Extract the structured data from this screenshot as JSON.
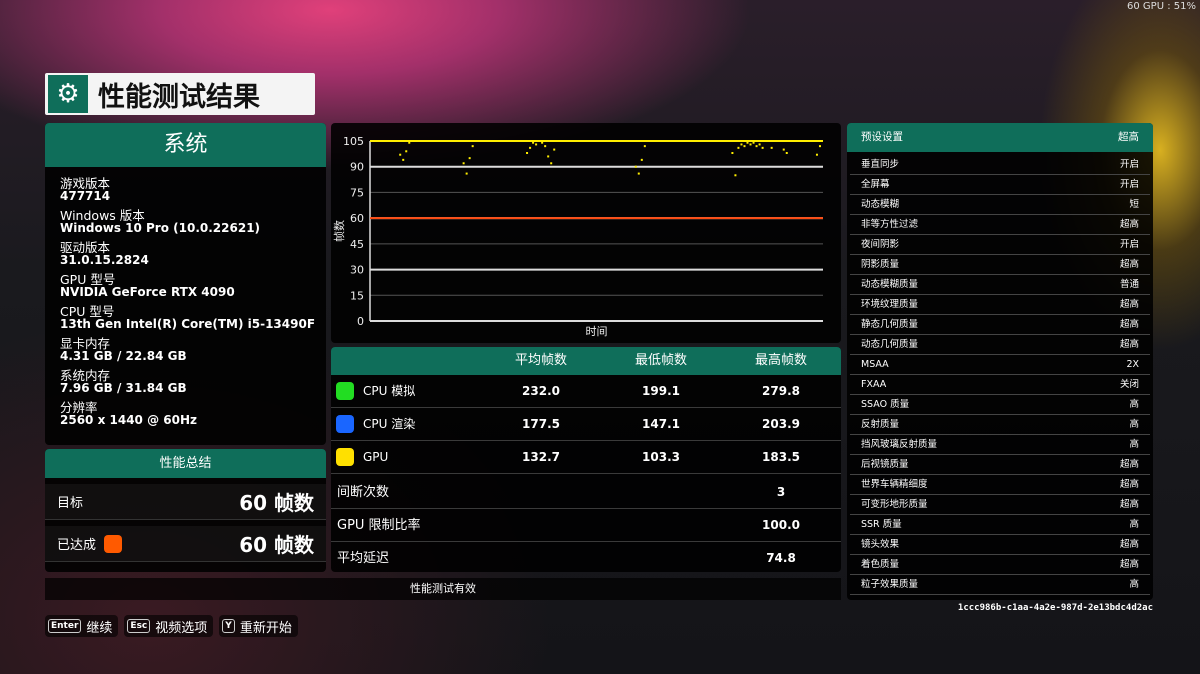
{
  "overlay": {
    "fps_gpu": "60 GPU : 51%"
  },
  "header": {
    "title": "性能测试结果",
    "icon": "gear-icon"
  },
  "system": {
    "title": "系统",
    "items": [
      {
        "label": "游戏版本",
        "value": "477714"
      },
      {
        "label": "Windows 版本",
        "value": "Windows 10 Pro (10.0.22621)"
      },
      {
        "label": "驱动版本",
        "value": "31.0.15.2824"
      },
      {
        "label": "GPU 型号",
        "value": "NVIDIA GeForce RTX 4090"
      },
      {
        "label": "CPU 型号",
        "value": "13th Gen Intel(R) Core(TM) i5-13490F"
      },
      {
        "label": "显卡内存",
        "value": "4.31 GB / 22.84 GB"
      },
      {
        "label": "系统内存",
        "value": "7.96 GB / 31.84 GB"
      },
      {
        "label": "分辨率",
        "value": "2560 x 1440 @ 60Hz"
      }
    ]
  },
  "summary": {
    "title": "性能总结",
    "target_label": "目标",
    "target_value": "60 帧数",
    "achieved_label": "已达成",
    "achieved_value": "60 帧数",
    "achieved_color": "#ff5a00"
  },
  "chart_data": {
    "type": "line",
    "xlabel": "时间",
    "ylabel": "帧数",
    "ylim": [
      0,
      105
    ],
    "yticks": [
      0,
      15,
      30,
      45,
      60,
      75,
      90,
      105
    ],
    "grid": true,
    "target_line": 60,
    "target_color": "#ff4a10",
    "series_color": "#ffee00",
    "series": [
      {
        "values": [
          105,
          105,
          105,
          105,
          105,
          105,
          105,
          105,
          105,
          105,
          97,
          94,
          99,
          104,
          105,
          105,
          105,
          105,
          105,
          105,
          105,
          105,
          105,
          105,
          105,
          105,
          105,
          105,
          105,
          105,
          105,
          92,
          86,
          95,
          102,
          105,
          105,
          105,
          105,
          105,
          105,
          105,
          105,
          105,
          105,
          105,
          105,
          105,
          105,
          105,
          105,
          105,
          98,
          101,
          104,
          103,
          105,
          104,
          102,
          96,
          92,
          100,
          105,
          105,
          105,
          105,
          105,
          105,
          105,
          105,
          105,
          105,
          105,
          105,
          105,
          105,
          105,
          105,
          105,
          105,
          105,
          105,
          105,
          105,
          105,
          105,
          105,
          105,
          90,
          86,
          94,
          102,
          105,
          105,
          105,
          105,
          105,
          105,
          105,
          105,
          105,
          105,
          105,
          105,
          105,
          105,
          105,
          105,
          105,
          105,
          105,
          105,
          105,
          105,
          105,
          105,
          105,
          105,
          105,
          105,
          98,
          85,
          101,
          103,
          102,
          104,
          103,
          104,
          102,
          103,
          101,
          105,
          105,
          101,
          105,
          105,
          105,
          100,
          98,
          105,
          105,
          105,
          105,
          105,
          105,
          105,
          105,
          105,
          97,
          102,
          105
        ]
      }
    ]
  },
  "table": {
    "headers": [
      "",
      "平均帧数",
      "最低帧数",
      "最高帧数"
    ],
    "rows": [
      {
        "label": "CPU 模拟",
        "color": "#22dd22",
        "avg": "232.0",
        "min": "199.1",
        "max": "279.8"
      },
      {
        "label": "CPU 渲染",
        "color": "#1a66ff",
        "avg": "177.5",
        "min": "147.1",
        "max": "203.9"
      },
      {
        "label": "GPU",
        "color": "#ffe000",
        "avg": "132.7",
        "min": "103.3",
        "max": "183.5"
      }
    ],
    "metrics": [
      {
        "label": "间断次数",
        "value": "3"
      },
      {
        "label": "GPU 限制比率",
        "value": "100.0"
      },
      {
        "label": "平均延迟",
        "value": "74.8"
      }
    ]
  },
  "valid": "性能测试有效",
  "settings": {
    "title": "预设设置",
    "value": "超高",
    "items": [
      {
        "label": "垂直同步",
        "value": "开启"
      },
      {
        "label": "全屏幕",
        "value": "开启"
      },
      {
        "label": "动态模糊",
        "value": "短"
      },
      {
        "label": "非等方性过滤",
        "value": "超高"
      },
      {
        "label": "夜间阴影",
        "value": "开启"
      },
      {
        "label": "阴影质量",
        "value": "超高"
      },
      {
        "label": "动态模糊质量",
        "value": "普通"
      },
      {
        "label": "环境纹理质量",
        "value": "超高"
      },
      {
        "label": "静态几何质量",
        "value": "超高"
      },
      {
        "label": "动态几何质量",
        "value": "超高"
      },
      {
        "label": "MSAA",
        "value": "2X"
      },
      {
        "label": "FXAA",
        "value": "关闭"
      },
      {
        "label": "SSAO 质量",
        "value": "高"
      },
      {
        "label": "反射质量",
        "value": "高"
      },
      {
        "label": "挡风玻璃反射质量",
        "value": "高"
      },
      {
        "label": "后视镜质量",
        "value": "超高"
      },
      {
        "label": "世界车辆精细度",
        "value": "超高"
      },
      {
        "label": "可变形地形质量",
        "value": "超高"
      },
      {
        "label": "SSR 质量",
        "value": "高"
      },
      {
        "label": "镜头效果",
        "value": "超高"
      },
      {
        "label": "着色质量",
        "value": "超高"
      },
      {
        "label": "粒子效果质量",
        "value": "高"
      }
    ]
  },
  "benchmark_id": "1ccc986b-c1aa-4a2e-987d-2e13bdc4d2ac",
  "buttons": [
    {
      "key": "Enter",
      "label": "继续"
    },
    {
      "key": "Esc",
      "label": "视频选项"
    },
    {
      "key": "Y",
      "label": "重新开始"
    }
  ]
}
